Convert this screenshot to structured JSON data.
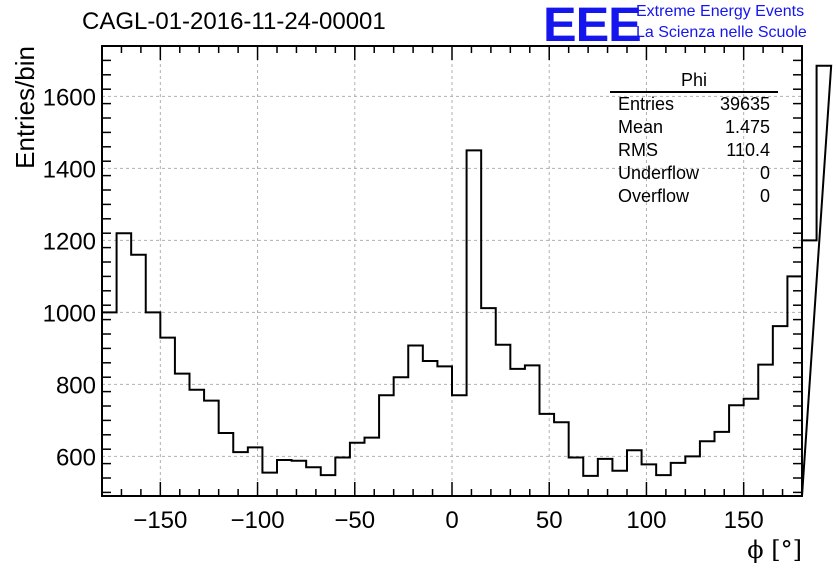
{
  "title": "CAGL-01-2016-11-24-00001",
  "logo": {
    "text": "EEE",
    "line1": "Extreme Energy Events",
    "line2": "La Scienza nelle Scuole",
    "color": "#1515ee"
  },
  "stats": {
    "name": "Phi",
    "rows": [
      {
        "label": "Entries",
        "value": "39635"
      },
      {
        "label": "Mean",
        "value": "1.475"
      },
      {
        "label": "RMS",
        "value": "110.4"
      },
      {
        "label": "Underflow",
        "value": "0"
      },
      {
        "label": "Overflow",
        "value": "0"
      }
    ]
  },
  "chart_data": {
    "type": "bar",
    "style": "step-histogram",
    "title": "CAGL-01-2016-11-24-00001",
    "xlabel": "ϕ [°]",
    "ylabel": "Entries/bin",
    "xlim": [
      -180,
      180
    ],
    "ylim": [
      490,
      1740
    ],
    "bin_width": 7.5,
    "x_ticks": [
      -150,
      -100,
      -50,
      0,
      50,
      100,
      150
    ],
    "y_ticks": [
      600,
      800,
      1000,
      1200,
      1400,
      1600
    ],
    "grid": true,
    "line_color": "#000000",
    "values": [
      1000,
      1220,
      1160,
      1000,
      930,
      830,
      785,
      755,
      665,
      612,
      625,
      555,
      590,
      588,
      570,
      548,
      597,
      638,
      652,
      770,
      820,
      908,
      865,
      850,
      770,
      1450,
      1012,
      910,
      843,
      853,
      718,
      695,
      597,
      546,
      593,
      560,
      617,
      578,
      548,
      582,
      600,
      642,
      668,
      742,
      760,
      855,
      962,
      1100,
      1200,
      1685
    ]
  }
}
